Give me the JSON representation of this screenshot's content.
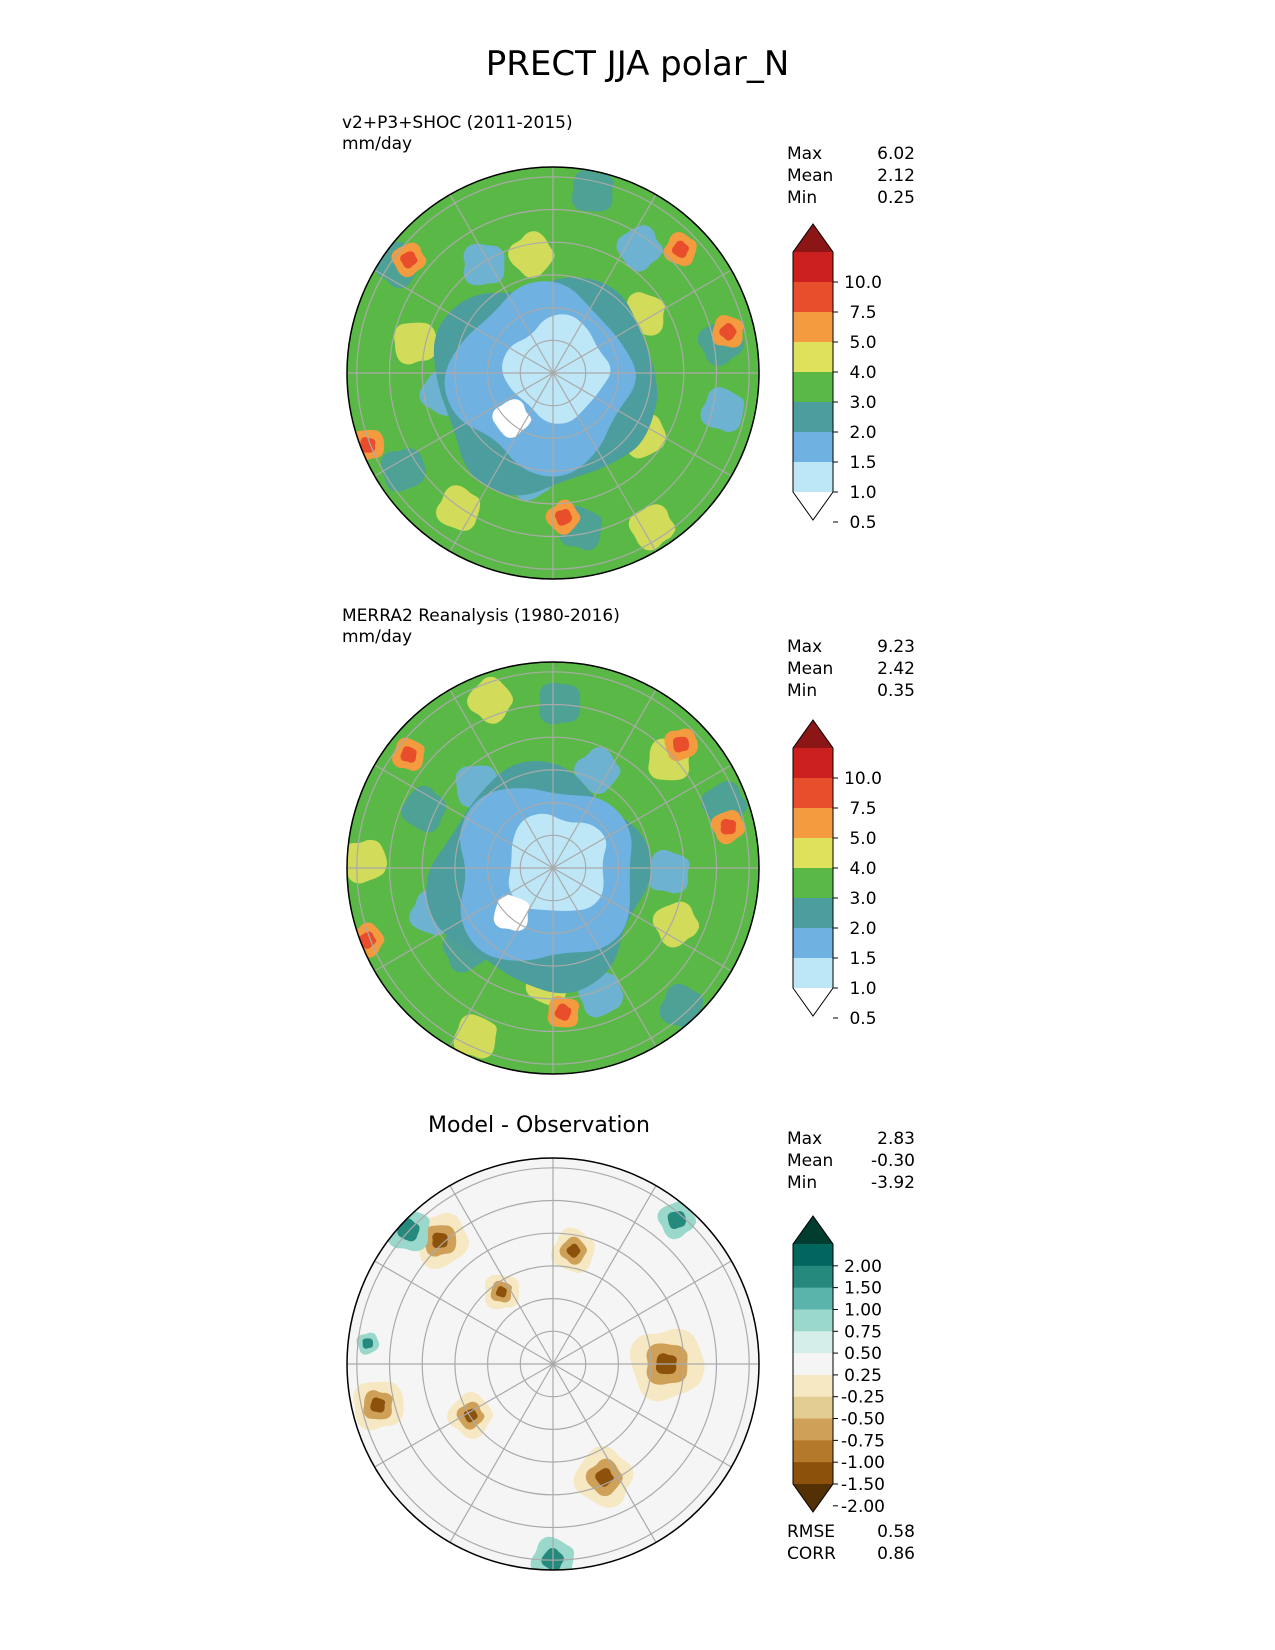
{
  "title": "PRECT JJA polar_N",
  "colors": {
    "prect_levels": [
      "#ffffff",
      "#bde6f7",
      "#6fb1e0",
      "#4b9e9d",
      "#5ab946",
      "#dfe05c",
      "#f49b3f",
      "#e84d2c",
      "#cc1f1f",
      "#8c1515"
    ],
    "diff_levels": [
      "#543005",
      "#8c510a",
      "#b47a2a",
      "#cfa058",
      "#e3cc92",
      "#f6e8c3",
      "#f5f5f5",
      "#d5eee9",
      "#9ad8cc",
      "#5ab4ac",
      "#26897e",
      "#01665e",
      "#003c30"
    ],
    "ocean_blue": "#6fb1e0",
    "graticule": "#aaaaaa"
  },
  "panels": [
    {
      "id": "test",
      "title": "v2+P3+SHOC (2011-2015)",
      "units": "mm/day",
      "stats": [
        {
          "label": "Max",
          "value": "6.02"
        },
        {
          "label": "Mean",
          "value": "2.12"
        },
        {
          "label": "Min",
          "value": "0.25"
        }
      ],
      "colorbar_ticks": [
        "10.0",
        "7.5",
        "5.0",
        "4.0",
        "3.0",
        "2.0",
        "1.5",
        "1.0",
        "0.5"
      ]
    },
    {
      "id": "ref",
      "title": "MERRA2 Reanalysis (1980-2016)",
      "units": "mm/day",
      "stats": [
        {
          "label": "Max",
          "value": "9.23"
        },
        {
          "label": "Mean",
          "value": "2.42"
        },
        {
          "label": "Min",
          "value": "0.35"
        }
      ],
      "colorbar_ticks": [
        "10.0",
        "7.5",
        "5.0",
        "4.0",
        "3.0",
        "2.0",
        "1.5",
        "1.0",
        "0.5"
      ]
    },
    {
      "id": "diff",
      "title": "Model - Observation",
      "stats": [
        {
          "label": "Max",
          "value": "2.83"
        },
        {
          "label": "Mean",
          "value": "-0.30"
        },
        {
          "label": "Min",
          "value": "-3.92"
        }
      ],
      "colorbar_ticks": [
        "2.00",
        "1.50",
        "1.00",
        "0.75",
        "0.50",
        "0.25",
        "-0.25",
        "-0.50",
        "-0.75",
        "-1.00",
        "-1.50",
        "-2.00"
      ],
      "metrics": [
        {
          "label": "RMSE",
          "value": "0.58"
        },
        {
          "label": "CORR",
          "value": "0.86"
        }
      ]
    }
  ],
  "chart_data": [
    {
      "type": "heatmap",
      "projection": "north polar stereographic",
      "title": "v2+P3+SHOC (2011-2015)",
      "units": "mm/day",
      "contour_levels": [
        0.5,
        1.0,
        1.5,
        2.0,
        3.0,
        4.0,
        5.0,
        7.5,
        10.0
      ],
      "colorbar_extend": "both",
      "stats": {
        "max": 6.02,
        "mean": 2.12,
        "min": 0.25
      }
    },
    {
      "type": "heatmap",
      "projection": "north polar stereographic",
      "title": "MERRA2 Reanalysis (1980-2016)",
      "units": "mm/day",
      "contour_levels": [
        0.5,
        1.0,
        1.5,
        2.0,
        3.0,
        4.0,
        5.0,
        7.5,
        10.0
      ],
      "colorbar_extend": "both",
      "stats": {
        "max": 9.23,
        "mean": 2.42,
        "min": 0.35
      }
    },
    {
      "type": "heatmap",
      "projection": "north polar stereographic",
      "title": "Model - Observation",
      "contour_levels": [
        -2.0,
        -1.5,
        -1.0,
        -0.75,
        -0.5,
        -0.25,
        0.25,
        0.5,
        0.75,
        1.0,
        1.5,
        2.0
      ],
      "colorbar_extend": "both",
      "stats": {
        "max": 2.83,
        "mean": -0.3,
        "min": -3.92,
        "rmse": 0.58,
        "corr": 0.86
      }
    }
  ]
}
